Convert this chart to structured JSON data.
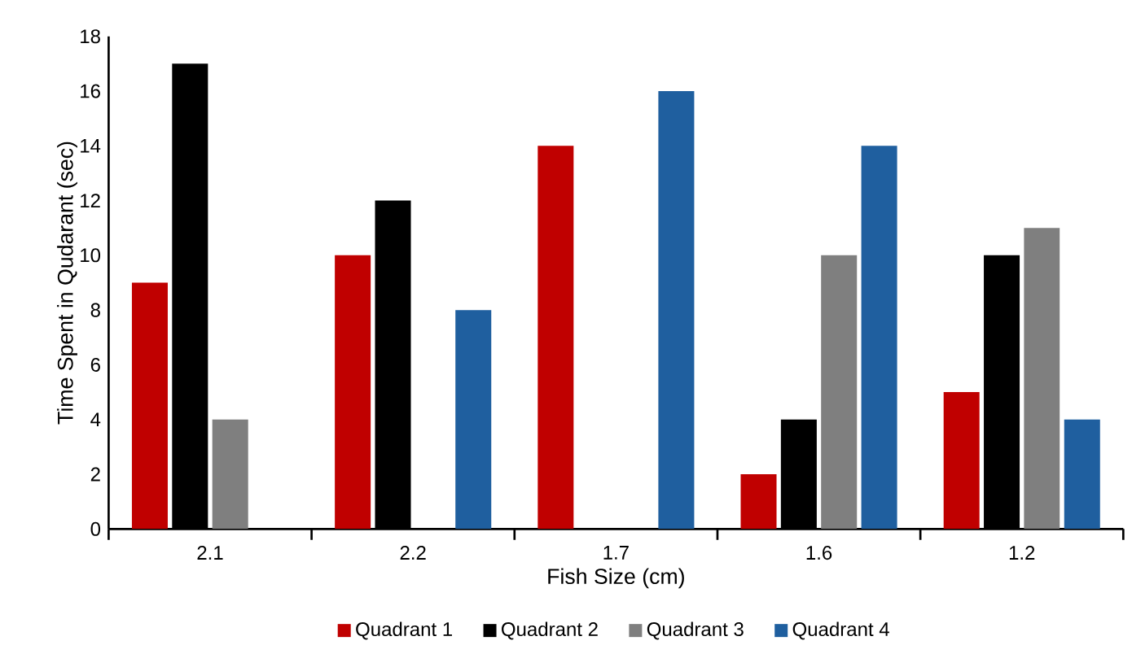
{
  "chart_data": {
    "type": "bar",
    "xlabel": "Fish Size (cm)",
    "ylabel": "Time Spent in Qudarant (sec)",
    "categories": [
      "2.1",
      "2.2",
      "1.7",
      "1.6",
      "1.2"
    ],
    "series": [
      {
        "name": "Quadrant 1",
        "color": "#c00000",
        "values": [
          9,
          10,
          14,
          2,
          5
        ]
      },
      {
        "name": "Quadrant 2",
        "color": "#000000",
        "values": [
          17,
          12,
          0,
          4,
          10
        ]
      },
      {
        "name": "Quadrant 3",
        "color": "#7f7f7f",
        "values": [
          4,
          0,
          0,
          10,
          11
        ]
      },
      {
        "name": "Quadrant 4",
        "color": "#1f5f9f",
        "values": [
          0,
          8,
          16,
          14,
          4
        ]
      }
    ],
    "ylim": [
      0,
      18
    ],
    "yticks": [
      0,
      2,
      4,
      6,
      8,
      10,
      12,
      14,
      16,
      18
    ],
    "grid": false,
    "legend": "bottom"
  }
}
